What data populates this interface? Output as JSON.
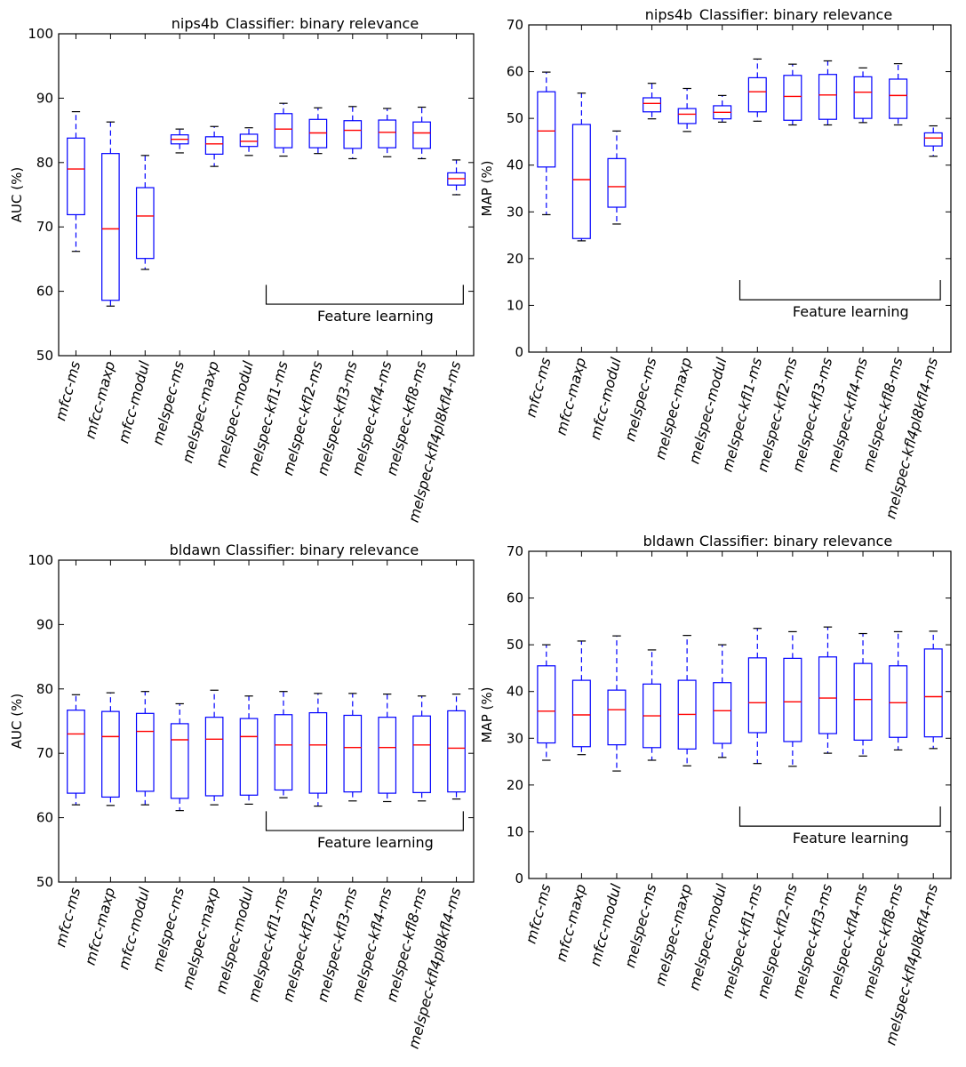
{
  "chart_data": [
    {
      "type": "box",
      "dataset": "nips4b",
      "classifier": "Classifier: binary relevance",
      "ylabel": "AUC (%)",
      "ylim": [
        50,
        100
      ],
      "yticks": [
        50,
        60,
        70,
        80,
        90,
        100
      ],
      "annotation": "Feature learning",
      "categories": [
        "mfcc-ms",
        "mfcc-maxp",
        "mfcc-modul",
        "melspec-ms",
        "melspec-maxp",
        "melspec-modul",
        "melspec-kfl1-ms",
        "melspec-kfl2-ms",
        "melspec-kfl3-ms",
        "melspec-kfl4-ms",
        "melspec-kfl8-ms",
        "melspec-kfl4pl8kfl4-ms"
      ],
      "boxes": [
        {
          "whislo": 66.2,
          "q1": 71.9,
          "med": 79.0,
          "q3": 83.8,
          "whishi": 87.9
        },
        {
          "whislo": 57.7,
          "q1": 58.6,
          "med": 69.7,
          "q3": 81.4,
          "whishi": 86.3
        },
        {
          "whislo": 63.4,
          "q1": 65.1,
          "med": 71.7,
          "q3": 76.1,
          "whishi": 81.1
        },
        {
          "whislo": 81.5,
          "q1": 82.9,
          "med": 83.6,
          "q3": 84.3,
          "whishi": 85.2
        },
        {
          "whislo": 79.4,
          "q1": 81.3,
          "med": 82.9,
          "q3": 84.0,
          "whishi": 85.6
        },
        {
          "whislo": 81.1,
          "q1": 82.5,
          "med": 83.3,
          "q3": 84.4,
          "whishi": 85.4
        },
        {
          "whislo": 81.0,
          "q1": 82.3,
          "med": 85.2,
          "q3": 87.6,
          "whishi": 89.2
        },
        {
          "whislo": 81.4,
          "q1": 82.3,
          "med": 84.6,
          "q3": 86.7,
          "whishi": 88.5
        },
        {
          "whislo": 80.6,
          "q1": 82.2,
          "med": 85.0,
          "q3": 86.5,
          "whishi": 88.7
        },
        {
          "whislo": 80.9,
          "q1": 82.3,
          "med": 84.7,
          "q3": 86.6,
          "whishi": 88.4
        },
        {
          "whislo": 80.6,
          "q1": 82.2,
          "med": 84.6,
          "q3": 86.3,
          "whishi": 88.6
        },
        {
          "whislo": 75.0,
          "q1": 76.5,
          "med": 77.5,
          "q3": 78.4,
          "whishi": 80.4
        }
      ]
    },
    {
      "type": "box",
      "dataset": "nips4b",
      "classifier": "Classifier: binary relevance",
      "ylabel": "MAP (%)",
      "ylim": [
        0,
        70
      ],
      "yticks": [
        0,
        10,
        20,
        30,
        40,
        50,
        60,
        70
      ],
      "annotation": "Feature learning",
      "categories": [
        "mfcc-ms",
        "mfcc-maxp",
        "mfcc-modul",
        "melspec-ms",
        "melspec-maxp",
        "melspec-modul",
        "melspec-kfl1-ms",
        "melspec-kfl2-ms",
        "melspec-kfl3-ms",
        "melspec-kfl4-ms",
        "melspec-kfl8-ms",
        "melspec-kfl4pl8kfl4-ms"
      ],
      "boxes": [
        {
          "whislo": 29.4,
          "q1": 39.6,
          "med": 47.3,
          "q3": 55.7,
          "whishi": 59.9
        },
        {
          "whislo": 23.8,
          "q1": 24.3,
          "med": 36.9,
          "q3": 48.7,
          "whishi": 55.4
        },
        {
          "whislo": 27.4,
          "q1": 31.0,
          "med": 35.4,
          "q3": 41.4,
          "whishi": 47.3
        },
        {
          "whislo": 49.9,
          "q1": 51.4,
          "med": 53.2,
          "q3": 54.4,
          "whishi": 57.5
        },
        {
          "whislo": 47.2,
          "q1": 48.9,
          "med": 50.9,
          "q3": 52.1,
          "whishi": 56.4
        },
        {
          "whislo": 49.2,
          "q1": 49.9,
          "med": 51.3,
          "q3": 52.7,
          "whishi": 54.9
        },
        {
          "whislo": 49.4,
          "q1": 51.4,
          "med": 55.7,
          "q3": 58.7,
          "whishi": 62.7
        },
        {
          "whislo": 48.6,
          "q1": 49.6,
          "med": 54.7,
          "q3": 59.2,
          "whishi": 61.6
        },
        {
          "whislo": 48.6,
          "q1": 49.8,
          "med": 55.0,
          "q3": 59.4,
          "whishi": 62.3
        },
        {
          "whislo": 49.1,
          "q1": 50.0,
          "med": 55.6,
          "q3": 58.9,
          "whishi": 60.8
        },
        {
          "whislo": 48.6,
          "q1": 50.0,
          "med": 54.9,
          "q3": 58.4,
          "whishi": 61.7
        },
        {
          "whislo": 41.9,
          "q1": 44.1,
          "med": 45.8,
          "q3": 46.9,
          "whishi": 48.4
        }
      ]
    },
    {
      "type": "box",
      "dataset": "bldawn",
      "classifier": "Classifier: binary relevance",
      "ylabel": "AUC (%)",
      "ylim": [
        50,
        100
      ],
      "yticks": [
        50,
        60,
        70,
        80,
        90,
        100
      ],
      "annotation": "Feature learning",
      "categories": [
        "mfcc-ms",
        "mfcc-maxp",
        "mfcc-modul",
        "melspec-ms",
        "melspec-maxp",
        "melspec-modul",
        "melspec-kfl1-ms",
        "melspec-kfl2-ms",
        "melspec-kfl3-ms",
        "melspec-kfl4-ms",
        "melspec-kfl8-ms",
        "melspec-kfl4pl8kfl4-ms"
      ],
      "boxes": [
        {
          "whislo": 62.0,
          "q1": 63.8,
          "med": 73.0,
          "q3": 76.7,
          "whishi": 79.1
        },
        {
          "whislo": 61.9,
          "q1": 63.2,
          "med": 72.6,
          "q3": 76.5,
          "whishi": 79.4
        },
        {
          "whislo": 62.0,
          "q1": 64.1,
          "med": 73.4,
          "q3": 76.2,
          "whishi": 79.6
        },
        {
          "whislo": 61.1,
          "q1": 63.0,
          "med": 72.1,
          "q3": 74.6,
          "whishi": 77.7
        },
        {
          "whislo": 62.0,
          "q1": 63.4,
          "med": 72.2,
          "q3": 75.6,
          "whishi": 79.8
        },
        {
          "whislo": 62.1,
          "q1": 63.5,
          "med": 72.6,
          "q3": 75.4,
          "whishi": 78.9
        },
        {
          "whislo": 63.1,
          "q1": 64.3,
          "med": 71.3,
          "q3": 76.0,
          "whishi": 79.6
        },
        {
          "whislo": 61.8,
          "q1": 63.8,
          "med": 71.3,
          "q3": 76.3,
          "whishi": 79.3
        },
        {
          "whislo": 62.6,
          "q1": 64.0,
          "med": 70.9,
          "q3": 75.9,
          "whishi": 79.3
        },
        {
          "whislo": 62.5,
          "q1": 63.8,
          "med": 70.9,
          "q3": 75.6,
          "whishi": 79.2
        },
        {
          "whislo": 62.6,
          "q1": 63.9,
          "med": 71.3,
          "q3": 75.8,
          "whishi": 78.9
        },
        {
          "whislo": 62.9,
          "q1": 64.0,
          "med": 70.8,
          "q3": 76.6,
          "whishi": 79.2
        }
      ]
    },
    {
      "type": "box",
      "dataset": "bldawn",
      "classifier": "Classifier: binary relevance",
      "ylabel": "MAP (%)",
      "ylim": [
        0,
        70
      ],
      "yticks": [
        0,
        10,
        20,
        30,
        40,
        50,
        60,
        70
      ],
      "annotation": "Feature learning",
      "categories": [
        "mfcc-ms",
        "mfcc-maxp",
        "mfcc-modul",
        "melspec-ms",
        "melspec-maxp",
        "melspec-modul",
        "melspec-kfl1-ms",
        "melspec-kfl2-ms",
        "melspec-kfl3-ms",
        "melspec-kfl4-ms",
        "melspec-kfl8-ms",
        "melspec-kfl4pl8kfl4-ms"
      ],
      "boxes": [
        {
          "whislo": 25.3,
          "q1": 29.0,
          "med": 35.8,
          "q3": 45.5,
          "whishi": 50.0
        },
        {
          "whislo": 26.5,
          "q1": 28.2,
          "med": 35.0,
          "q3": 42.4,
          "whishi": 50.8
        },
        {
          "whislo": 23.0,
          "q1": 28.6,
          "med": 36.1,
          "q3": 40.3,
          "whishi": 51.9
        },
        {
          "whislo": 25.3,
          "q1": 28.0,
          "med": 34.8,
          "q3": 41.6,
          "whishi": 48.9
        },
        {
          "whislo": 24.1,
          "q1": 27.7,
          "med": 35.1,
          "q3": 42.4,
          "whishi": 52.0
        },
        {
          "whislo": 25.9,
          "q1": 28.9,
          "med": 35.9,
          "q3": 41.9,
          "whishi": 50.0
        },
        {
          "whislo": 24.6,
          "q1": 31.2,
          "med": 37.6,
          "q3": 47.2,
          "whishi": 53.5
        },
        {
          "whislo": 24.0,
          "q1": 29.3,
          "med": 37.8,
          "q3": 47.1,
          "whishi": 52.8
        },
        {
          "whislo": 26.8,
          "q1": 31.0,
          "med": 38.6,
          "q3": 47.4,
          "whishi": 53.8
        },
        {
          "whislo": 26.2,
          "q1": 29.6,
          "med": 38.3,
          "q3": 46.0,
          "whishi": 52.4
        },
        {
          "whislo": 27.5,
          "q1": 30.2,
          "med": 37.6,
          "q3": 45.5,
          "whishi": 52.8
        },
        {
          "whislo": 27.8,
          "q1": 30.3,
          "med": 38.9,
          "q3": 49.1,
          "whishi": 52.9
        }
      ]
    }
  ],
  "colors": {
    "box": "#0000ff",
    "median": "#ff0000",
    "axis": "#000000"
  }
}
